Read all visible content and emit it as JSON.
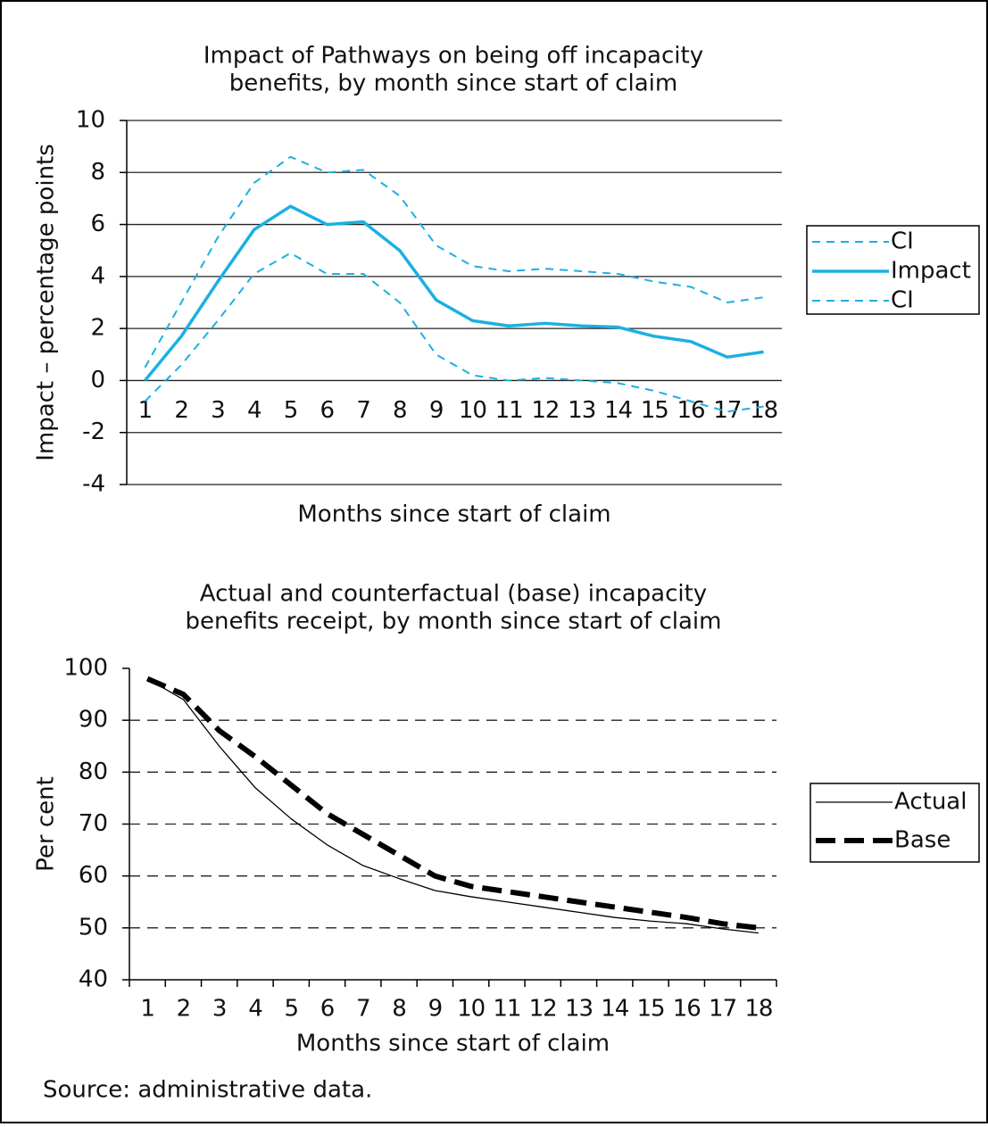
{
  "chart_data": [
    {
      "type": "line",
      "title": [
        "Impact of Pathways on being off incapacity",
        "benefits, by month since start of claim"
      ],
      "x_label": "Months since start of claim",
      "y_label": "Impact – percentage points",
      "categories": [
        "1",
        "2",
        "3",
        "4",
        "5",
        "6",
        "7",
        "8",
        "9",
        "10",
        "11",
        "12",
        "13",
        "14",
        "15",
        "16",
        "17",
        "18"
      ],
      "series": [
        {
          "name": "CI",
          "color": "#1ab0e2",
          "style": "dashed",
          "values": [
            0.5,
            3.0,
            5.5,
            7.6,
            8.6,
            8.0,
            8.1,
            7.1,
            5.2,
            4.4,
            4.2,
            4.3,
            4.2,
            4.1,
            3.8,
            3.6,
            3.0,
            3.2
          ]
        },
        {
          "name": "Impact",
          "color": "#1ab0e2",
          "style": "solid",
          "values": [
            0,
            1.7,
            3.8,
            5.8,
            6.7,
            6.0,
            6.1,
            5.0,
            3.1,
            2.3,
            2.1,
            2.2,
            2.1,
            2.05,
            1.7,
            1.5,
            0.9,
            1.1
          ]
        },
        {
          "name": "CI",
          "color": "#1ab0e2",
          "style": "dashed",
          "values": [
            -0.8,
            0.6,
            2.3,
            4.1,
            4.9,
            4.1,
            4.1,
            3.0,
            1.0,
            0.2,
            0.0,
            0.1,
            0.0,
            -0.1,
            -0.4,
            -0.8,
            -1.2,
            -1.0
          ]
        }
      ],
      "ylim": [
        -4,
        10
      ],
      "yticks": [
        -4,
        -2,
        0,
        2,
        4,
        6,
        8,
        10
      ],
      "grid": "solid"
    },
    {
      "type": "line",
      "title": [
        "Actual and counterfactual (base) incapacity",
        "benefits receipt, by month since start of claim"
      ],
      "x_label": "Months since start of claim",
      "y_label": "Per cent",
      "categories": [
        "1",
        "2",
        "3",
        "4",
        "5",
        "6",
        "7",
        "8",
        "9",
        "10",
        "11",
        "12",
        "13",
        "14",
        "15",
        "16",
        "17",
        "18"
      ],
      "series": [
        {
          "name": "Actual",
          "color": "#000000",
          "style": "thin",
          "values": [
            98,
            94,
            85,
            77,
            71,
            66,
            62,
            59.5,
            57.2,
            56,
            55,
            54,
            53,
            52,
            51.3,
            50.8,
            49.8,
            49
          ]
        },
        {
          "name": "Base",
          "color": "#000000",
          "style": "bold-dashed",
          "values": [
            98,
            95,
            88,
            83,
            77.5,
            72,
            68,
            64,
            60,
            58,
            57,
            56,
            55,
            54,
            53,
            52,
            50.8,
            50
          ]
        }
      ],
      "ylim": [
        40,
        100
      ],
      "yticks": [
        40,
        50,
        60,
        70,
        80,
        90,
        100
      ],
      "grid": "dashed"
    }
  ],
  "source": "Source: administrative data."
}
